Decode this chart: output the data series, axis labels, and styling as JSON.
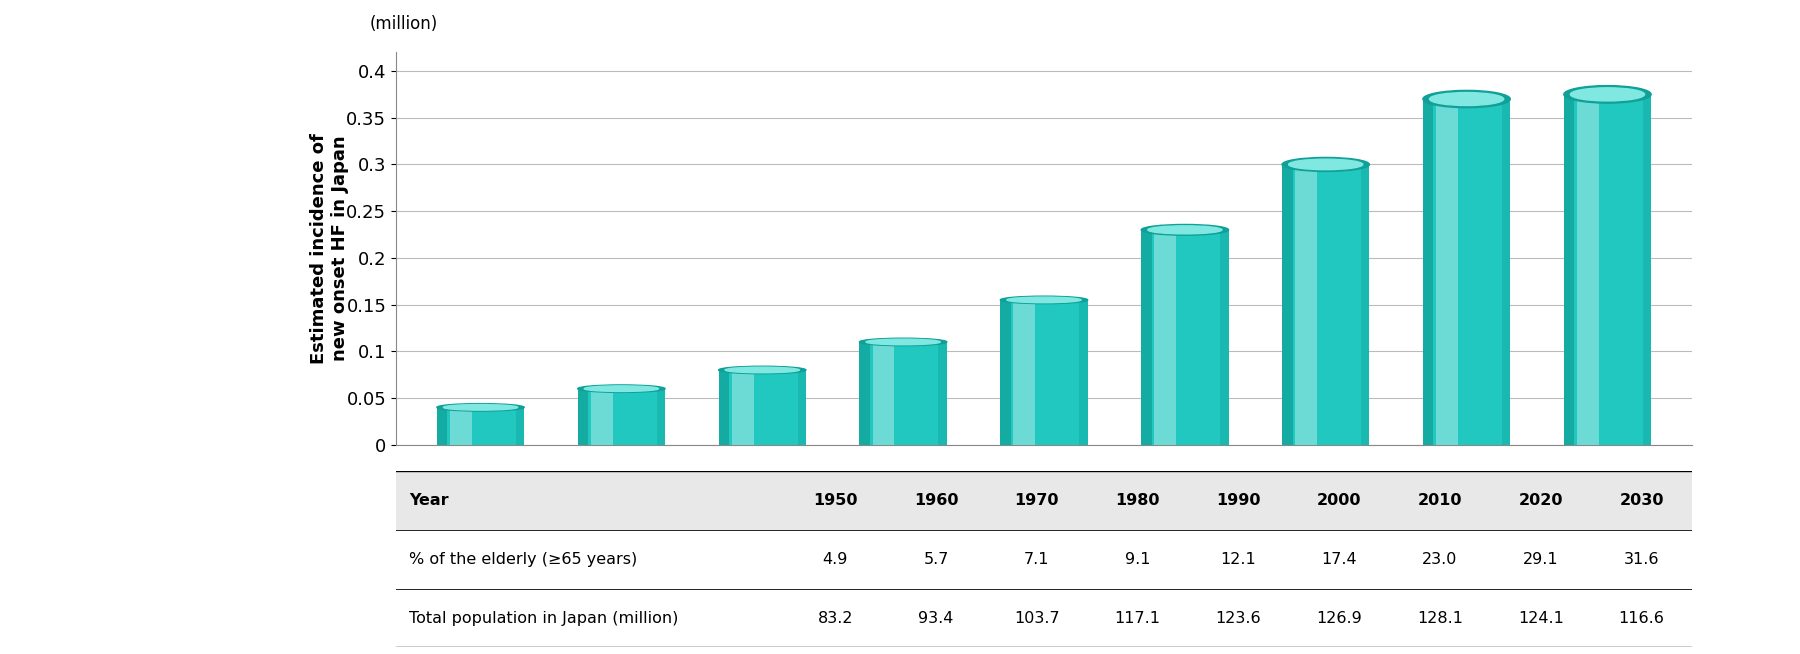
{
  "years": [
    "1950",
    "1960",
    "1970",
    "1980",
    "1990",
    "2000",
    "2010",
    "2020",
    "2030"
  ],
  "values": [
    0.04,
    0.06,
    0.08,
    0.11,
    0.155,
    0.23,
    0.3,
    0.37,
    0.375
  ],
  "bar_color_main": "#20C8C0",
  "bar_color_light": "#80E8E0",
  "bar_color_dark": "#10A098",
  "bar_color_shadow": "#60D0C8",
  "ylabel_line1": "Estimated incidence of",
  "ylabel_line2": "new onset HF in Japan",
  "unit_label": "(million)",
  "ylim": [
    0,
    0.42
  ],
  "yticks": [
    0,
    0.05,
    0.1,
    0.15,
    0.2,
    0.25,
    0.3,
    0.35,
    0.4
  ],
  "ytick_labels": [
    "0",
    "0.05",
    "0.1",
    "0.15",
    "0.2",
    "0.25",
    "0.3",
    "0.35",
    "0.4"
  ],
  "table_header": [
    "Year",
    "1950",
    "1960",
    "1970",
    "1980",
    "1990",
    "2000",
    "2010",
    "2020",
    "2030"
  ],
  "table_row2": [
    "≥65年齢の割合 (% of the elderly (≥65 years))",
    "4.9",
    "5.7",
    "7.1",
    "9.1",
    "12.1",
    "17.4",
    "23.0",
    "29.1",
    "31.6"
  ],
  "table_row3": [
    "Total population in Japan (million)",
    "83.2",
    "93.4",
    "103.7",
    "117.1",
    "123.6",
    "126.9",
    "128.1",
    "124.1",
    "116.6"
  ],
  "table_row2_label": "% of the elderly (≥65 years)",
  "background_color": "#ffffff",
  "grid_color": "#bbbbbb",
  "figsize": [
    18.0,
    6.54
  ],
  "dpi": 100
}
